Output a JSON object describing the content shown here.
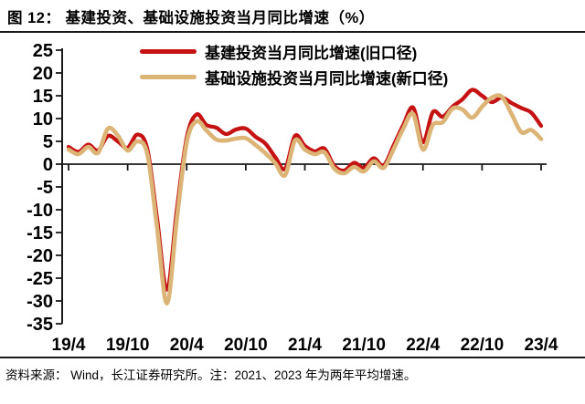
{
  "header": {
    "title": "图 12：  基建投资、基础设施投资当月同比增速（%）"
  },
  "legend": {
    "items": [
      {
        "label": "基建投资当月同比增速(旧口径)",
        "color": "#c51212"
      },
      {
        "label": "基础设施投资当月同比增速(新口径)",
        "color": "#dbb476"
      }
    ]
  },
  "footer": {
    "source_note": "资料来源： Wind，长江证券研究所。注：2021、2023 年为两年平均增速。"
  },
  "chart_data": {
    "type": "line",
    "title": "基建投资、基础设施投资当月同比增速（%）",
    "xlabel": "",
    "ylabel": "",
    "ylim": [
      -35,
      25
    ],
    "y_ticks": [
      25,
      20,
      15,
      10,
      5,
      0,
      -5,
      -10,
      -15,
      -20,
      -25,
      -30,
      -35
    ],
    "x_tick_labels": [
      "19/4",
      "19/10",
      "20/4",
      "20/10",
      "21/4",
      "21/10",
      "22/4",
      "22/10",
      "23/4"
    ],
    "grid": false,
    "legend_position": "top",
    "line_style": "smooth",
    "axis_color": "#1a1a1a",
    "x": [
      "19/4",
      "19/5",
      "19/6",
      "19/7",
      "19/8",
      "19/9",
      "19/10",
      "19/11",
      "19/12",
      "20/1",
      "20/2",
      "20/3",
      "20/4",
      "20/5",
      "20/6",
      "20/7",
      "20/8",
      "20/9",
      "20/10",
      "20/11",
      "20/12",
      "21/1",
      "21/2",
      "21/3",
      "21/4",
      "21/5",
      "21/6",
      "21/7",
      "21/8",
      "21/9",
      "21/10",
      "21/11",
      "21/12",
      "22/1",
      "22/2",
      "22/3",
      "22/4",
      "22/5",
      "22/6",
      "22/7",
      "22/8",
      "22/9",
      "22/10",
      "22/11",
      "22/12",
      "23/1",
      "23/2",
      "23/3",
      "23/4"
    ],
    "series": [
      {
        "name": "基建投资当月同比增速(旧口径)",
        "color": "#c51212",
        "width": 4.3,
        "values": [
          3.8,
          2.7,
          4.3,
          3.0,
          6.2,
          5.0,
          3.6,
          6.5,
          3.3,
          -12.0,
          -27.5,
          -10.0,
          5.8,
          10.9,
          8.6,
          8.0,
          6.6,
          7.6,
          7.8,
          6.0,
          4.5,
          1.5,
          -1.0,
          6.2,
          4.0,
          2.8,
          3.4,
          -0.4,
          -1.4,
          0.3,
          -0.8,
          1.3,
          -0.3,
          4.0,
          8.6,
          12.4,
          4.8,
          11.4,
          10.4,
          12.6,
          14.2,
          16.3,
          15.0,
          13.6,
          14.6,
          13.4,
          12.3,
          11.3,
          8.4
        ]
      },
      {
        "name": "基础设施投资当月同比增速(新口径)",
        "color": "#dbb476",
        "width": 4.6,
        "values": [
          3.2,
          2.2,
          3.8,
          2.5,
          7.8,
          6.3,
          3.0,
          5.0,
          2.2,
          -14.0,
          -30.5,
          -12.0,
          4.8,
          9.4,
          7.4,
          5.4,
          5.2,
          5.6,
          5.7,
          4.2,
          2.4,
          0.2,
          -2.4,
          5.2,
          3.2,
          2.2,
          2.6,
          -1.0,
          -2.0,
          -0.6,
          -1.6,
          0.6,
          -0.8,
          3.2,
          7.8,
          11.0,
          3.2,
          8.6,
          9.2,
          12.2,
          12.0,
          10.2,
          12.6,
          14.6,
          14.8,
          11.0,
          7.0,
          7.5,
          5.5
        ]
      }
    ]
  }
}
